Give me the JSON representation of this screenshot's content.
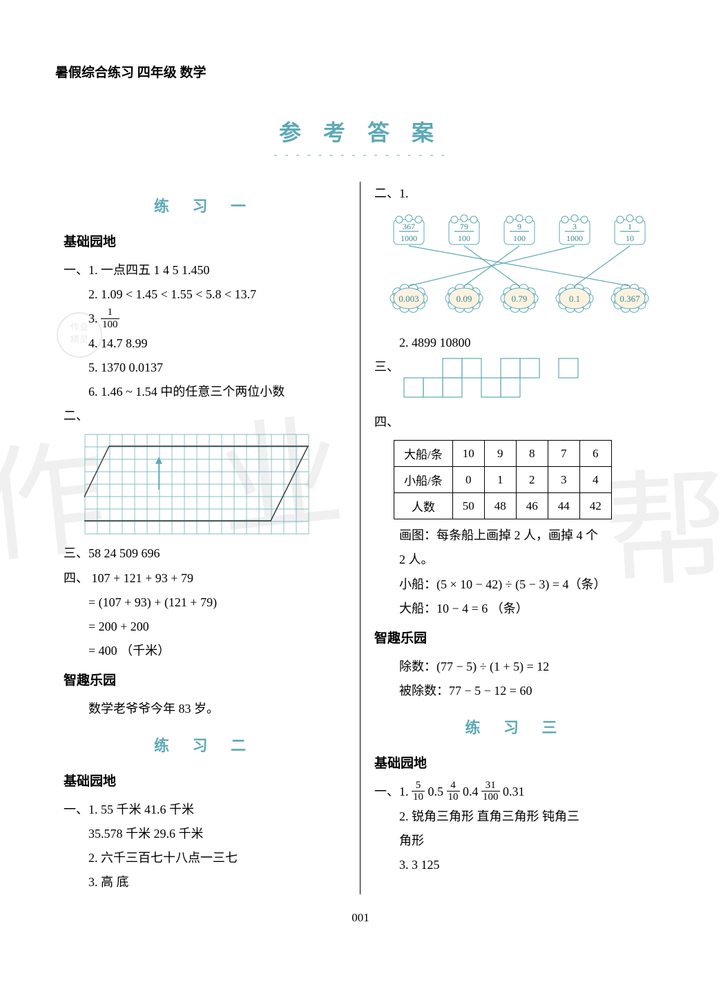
{
  "header": "暑假综合练习  四年级  数学",
  "main_title": "参 考 答 案",
  "title_dashes": "- - - - - - - - - - - - - - - -",
  "page_num": "001",
  "ex1": {
    "title": "练  习  一",
    "section_basic": "基础园地",
    "i1": "一、1. 一点四五  1  4  5  1.450",
    "i2": "2. 1.09 < 1.45 < 1.55 < 5.8 < 13.7",
    "i3_prefix": "3. ",
    "i3_num": "1",
    "i3_den": "100",
    "i4": "4. 14.7  8.99",
    "i5": "5. 1370  0.0137",
    "i6": "6. 1.46 ~ 1.54 中的任意三个两位小数",
    "ii_label": "二、",
    "iii": "三、58  24  509  696",
    "iv_label": "四、",
    "iv_l1": "  107 + 121 + 93 + 79",
    "iv_l2": "= (107 + 93) + (121 + 79)",
    "iv_l3": "= 200 + 200",
    "iv_l4": "= 400 （千米）",
    "section_fun": "智趣乐园",
    "fun1": "数学老爷爷今年 83 岁。",
    "grid": {
      "cols": 18,
      "rows": 8,
      "cell": 18,
      "stroke": "#5da9b5",
      "shape_stroke": "#333333",
      "arrow_color": "#5da9b5"
    }
  },
  "ex2": {
    "title": "练  习  二",
    "section_basic": "基础园地",
    "i1": "一、1. 55 千米  41.6 千米",
    "i1b": "35.578 千米  29.6 千米",
    "i2": "2. 六千三百七十八点一三七",
    "i3": "3. 高  底",
    "ii_label": "二、1.",
    "match": {
      "top": [
        {
          "num": "367",
          "den": "1000"
        },
        {
          "num": "79",
          "den": "100"
        },
        {
          "num": "9",
          "den": "100"
        },
        {
          "num": "3",
          "den": "1000"
        },
        {
          "num": "1",
          "den": "10"
        }
      ],
      "bottom": [
        "0.003",
        "0.09",
        "0.79",
        "0.1",
        "0.367"
      ],
      "links": [
        [
          0,
          4
        ],
        [
          1,
          2
        ],
        [
          2,
          1
        ],
        [
          3,
          0
        ],
        [
          4,
          3
        ]
      ],
      "stroke": "#5da9b5",
      "cloud_fill": "#fdf2e0",
      "cloud_stroke": "#5da9b5",
      "text_color": "#3a8893"
    },
    "ii2": "2. 4899  10800",
    "iii_label": "三、",
    "three_grid": {
      "rows": 2,
      "cols": 10,
      "cell": 28,
      "stroke": "#5da9b5",
      "pattern": [
        [
          0,
          0,
          1,
          1,
          0,
          1,
          1,
          0,
          1,
          0
        ],
        [
          1,
          1,
          1,
          0,
          1,
          1,
          0,
          0,
          0,
          0
        ]
      ]
    },
    "iv_label": "四、",
    "table": {
      "rows": [
        [
          "大船/条",
          "10",
          "9",
          "8",
          "7",
          "6"
        ],
        [
          "小船/条",
          "0",
          "1",
          "2",
          "3",
          "4"
        ],
        [
          "人数",
          "50",
          "48",
          "46",
          "44",
          "42"
        ]
      ]
    },
    "iv_t1": "画图：每条船上画掉 2 人，画掉 4 个",
    "iv_t2": "2 人。",
    "iv_t3": "小船：(5 × 10 − 42) ÷ (5 − 3) = 4（条）",
    "iv_t4": "大船：10 − 4 = 6 （条）",
    "section_fun": "智趣乐园",
    "fun1": "除数：(77 − 5) ÷ (1 + 5) = 12",
    "fun2": "被除数：77 − 5 − 12 = 60"
  },
  "ex3": {
    "title": "练  习  三",
    "section_basic": "基础园地",
    "i1_prefix": "一、1. ",
    "fracs": [
      {
        "num": "5",
        "den": "10",
        "after": "  0.5  "
      },
      {
        "num": "4",
        "den": "10",
        "after": "  0.4  "
      },
      {
        "num": "31",
        "den": "100",
        "after": "  0.31"
      }
    ],
    "i2": "2. 锐角三角形  直角三角形  钝角三",
    "i2b": "角形",
    "i3": "3. 3  125"
  },
  "watermark1": "作 业",
  "watermark2": "帮"
}
